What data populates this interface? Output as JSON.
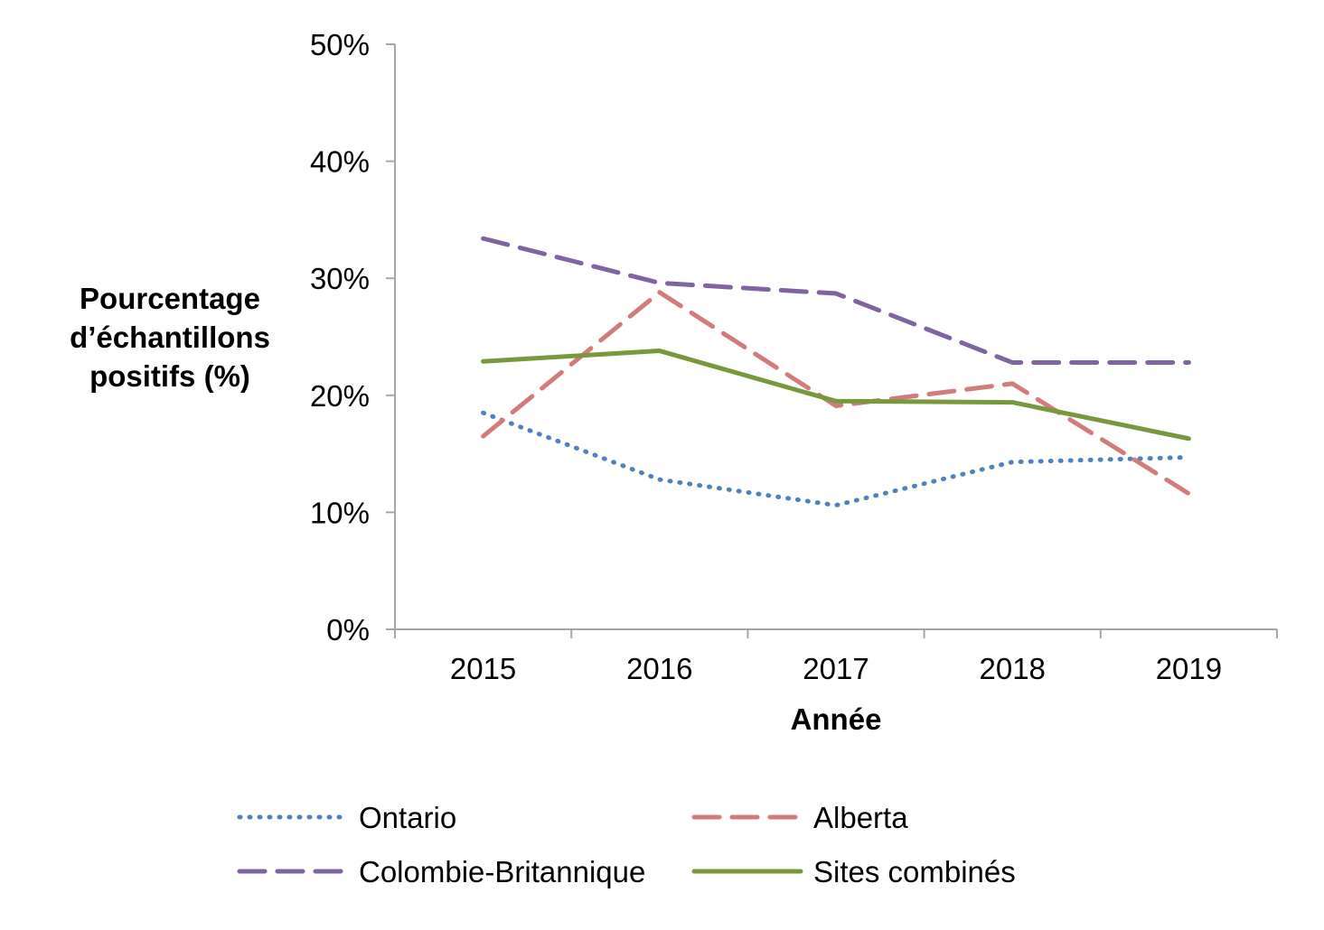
{
  "chart_data": {
    "type": "line",
    "title": "",
    "xlabel": "Année",
    "ylabel": [
      "Pourcentage",
      "d’échantillons",
      "positifs (%)"
    ],
    "categories": [
      "2015",
      "2016",
      "2017",
      "2018",
      "2019"
    ],
    "ylim": [
      0,
      50
    ],
    "yticks": [
      "0%",
      "10%",
      "20%",
      "30%",
      "40%",
      "50%"
    ],
    "grid": false,
    "legend_position": "bottom",
    "series": [
      {
        "name": "Ontario",
        "values": [
          18.5,
          12.8,
          10.6,
          14.3,
          14.7
        ],
        "color": "#4f81bd",
        "style": "dotted"
      },
      {
        "name": "Alberta",
        "values": [
          16.5,
          28.8,
          19.1,
          21.0,
          11.6
        ],
        "color": "#d27b7b",
        "style": "dashed"
      },
      {
        "name": "Colombie-Britannique",
        "values": [
          33.4,
          29.6,
          28.7,
          22.8,
          22.8
        ],
        "color": "#8064a2",
        "style": "dashed"
      },
      {
        "name": "Sites combinés",
        "values": [
          22.9,
          23.8,
          19.5,
          19.4,
          16.3
        ],
        "color": "#77983c",
        "style": "solid"
      }
    ]
  }
}
